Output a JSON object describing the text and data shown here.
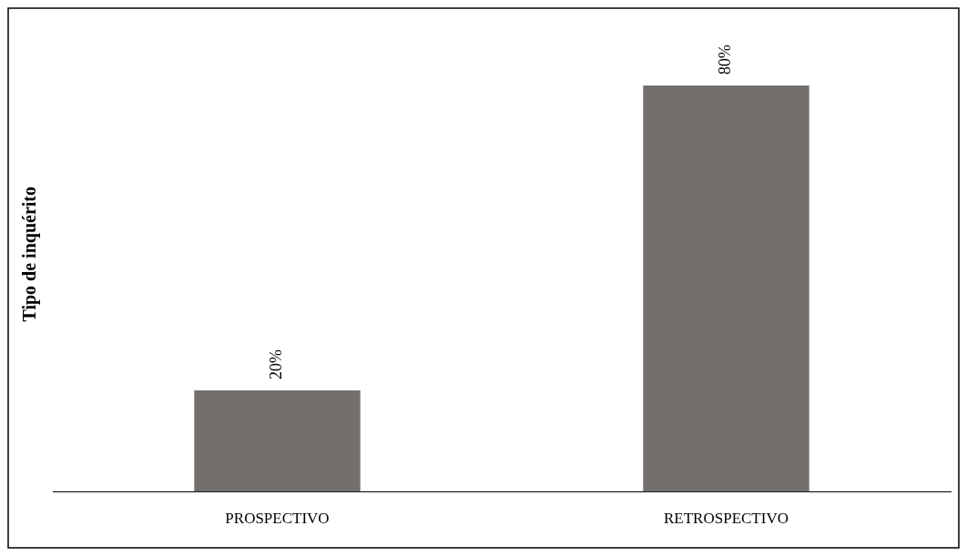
{
  "chart_data": {
    "type": "bar",
    "ylabel": "Tipo de inquérito",
    "categories": [
      "PROSPECTIVO",
      "RETROSPECTIVO"
    ],
    "values": [
      20,
      80
    ],
    "value_labels": [
      "20%",
      "80%"
    ],
    "color": "#736f6d",
    "grid": false,
    "legend": false
  }
}
